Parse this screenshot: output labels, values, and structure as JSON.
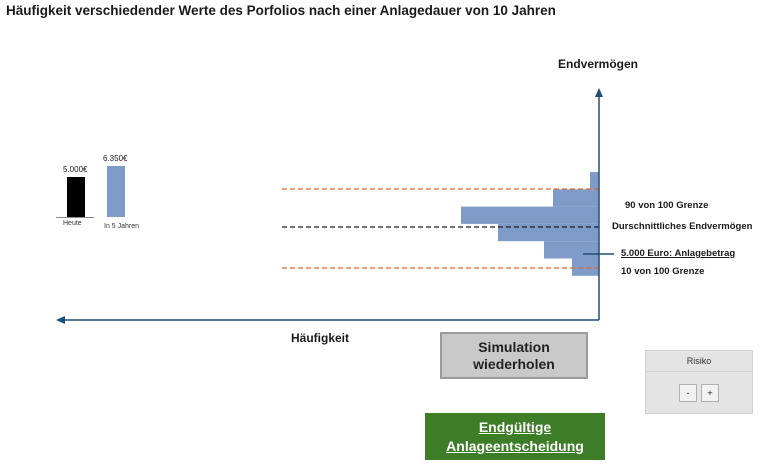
{
  "title": "Häufigkeit verschiedender Werte des Porfolios nach einer Anlagedauer von 10 Jahren",
  "mini_chart": {
    "bars": [
      {
        "category": "Heute",
        "value": 5000,
        "value_label": "5.000€",
        "color": "#000000"
      },
      {
        "category": "In 5 Jahren",
        "value": 6350,
        "value_label": "6.350€",
        "color": "#7f9cc9"
      }
    ]
  },
  "chart_data": {
    "type": "bar",
    "orientation": "horizontal",
    "ylabel": "Endvermögen",
    "xlabel": "Häufigkeit",
    "bar_color": "#7f9cc9",
    "bins": [
      {
        "bin": 1,
        "frequency": 9
      },
      {
        "bin": 2,
        "frequency": 46
      },
      {
        "bin": 3,
        "frequency": 138
      },
      {
        "bin": 4,
        "frequency": 101
      },
      {
        "bin": 5,
        "frequency": 55
      },
      {
        "bin": 6,
        "frequency": 27
      }
    ],
    "reference_lines": [
      {
        "label": "90 von 100 Grenze",
        "color": "#e2662b",
        "style": "dashed"
      },
      {
        "label": "Durschnittliches Endvermögen",
        "color": "#1a1a1a",
        "style": "dashed"
      },
      {
        "label": "5.000 Euro: Anlagebetrag",
        "color": "#1f4e79",
        "style": "solid"
      },
      {
        "label": "10 von 100 Grenze",
        "color": "#e2662b",
        "style": "dashed"
      }
    ]
  },
  "buttons": {
    "simulate": "Simulation wiederholen",
    "final_line1": "Endgültige",
    "final_line2": "Anlageentscheidung"
  },
  "risk": {
    "title": "Risiko",
    "minus": "-",
    "plus": "+"
  }
}
